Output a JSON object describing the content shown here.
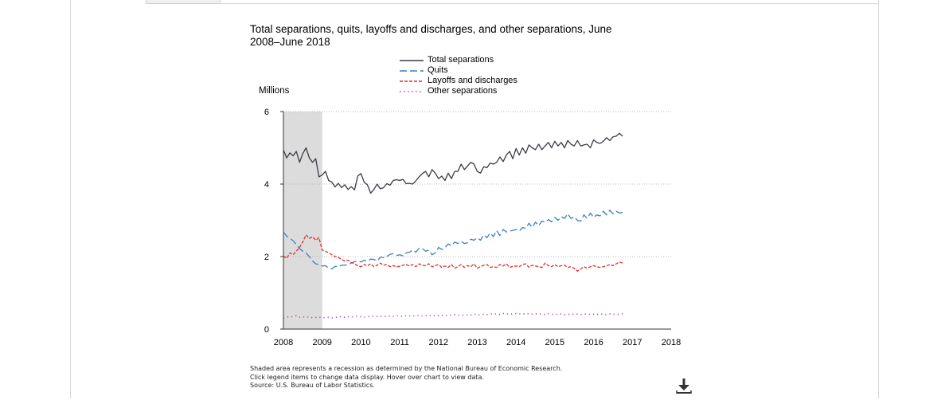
{
  "chart_data": {
    "type": "line",
    "title": "Total separations, quits, layoffs and discharges, and other separations, June 2008–June 2018",
    "ylabel": "Millions",
    "xlabel": "",
    "ylim": [
      0,
      6
    ],
    "xlim": [
      2008,
      2018
    ],
    "yticks": [
      0,
      2,
      4,
      6
    ],
    "xticks": [
      2008,
      2009,
      2010,
      2011,
      2012,
      2013,
      2014,
      2015,
      2016,
      2017,
      2018
    ],
    "grid": "horizontal dotted",
    "legend_position": "top",
    "recession_shading": [
      2008,
      2009
    ],
    "series": [
      {
        "name": "Total separations",
        "color": "#3b3b45",
        "dash": "solid",
        "x_start": 2008.0,
        "x_step": 0.08333,
        "values": [
          4.94,
          4.72,
          4.86,
          4.78,
          4.9,
          4.6,
          4.84,
          5.0,
          4.72,
          4.6,
          4.7,
          4.2,
          4.25,
          4.35,
          4.1,
          4.05,
          3.92,
          4.02,
          3.9,
          3.98,
          3.85,
          3.93,
          3.84,
          4.22,
          4.29,
          4.05,
          3.98,
          3.75,
          3.85,
          4.0,
          3.87,
          3.9,
          4.01,
          3.97,
          4.1,
          4.12,
          4.1,
          4.13,
          4.01,
          4.02,
          4.0,
          4.09,
          4.2,
          4.29,
          4.35,
          4.2,
          4.4,
          4.3,
          4.15,
          4.22,
          4.1,
          4.3,
          4.15,
          4.35,
          4.35,
          4.55,
          4.4,
          4.5,
          4.6,
          4.55,
          4.35,
          4.3,
          4.48,
          4.45,
          4.58,
          4.55,
          4.6,
          4.75,
          4.62,
          4.8,
          4.9,
          4.7,
          4.98,
          4.8,
          5.0,
          4.85,
          5.08,
          5.0,
          4.95,
          5.1,
          4.95,
          5.05,
          5.15,
          5.0,
          5.18,
          5.05,
          5.15,
          5.0,
          5.2,
          5.1,
          5.05,
          5.2,
          5.05,
          5.08,
          5.1,
          5.0,
          5.22,
          5.15,
          5.12,
          5.18,
          5.28,
          5.2,
          5.3,
          5.32,
          5.4,
          5.32
        ]
      },
      {
        "name": "Quits",
        "color": "#3a7fc1",
        "dash": "long-dash",
        "x_start": 2008.0,
        "x_step": 0.08333,
        "values": [
          2.68,
          2.56,
          2.5,
          2.44,
          2.33,
          2.22,
          2.15,
          2.1,
          2.0,
          1.88,
          1.8,
          1.78,
          1.74,
          1.75,
          1.68,
          1.66,
          1.73,
          1.72,
          1.76,
          1.76,
          1.78,
          1.82,
          1.86,
          1.88,
          1.85,
          1.9,
          1.87,
          1.93,
          1.92,
          1.88,
          1.98,
          1.97,
          2.0,
          2.06,
          2.08,
          2.03,
          2.05,
          2.02,
          2.1,
          2.12,
          2.18,
          2.12,
          2.23,
          2.22,
          2.15,
          2.18,
          2.05,
          2.1,
          2.25,
          2.2,
          2.25,
          2.35,
          2.3,
          2.4,
          2.36,
          2.42,
          2.36,
          2.38,
          2.48,
          2.45,
          2.52,
          2.45,
          2.6,
          2.52,
          2.65,
          2.55,
          2.72,
          2.58,
          2.75,
          2.68,
          2.7,
          2.72,
          2.75,
          2.7,
          2.8,
          2.78,
          2.92,
          2.8,
          2.95,
          2.85,
          2.98,
          2.95,
          3.02,
          2.96,
          3.08,
          3.0,
          3.1,
          3.05,
          3.18,
          3.05,
          3.1,
          3.0,
          2.98,
          3.15,
          3.05,
          3.2,
          3.08,
          3.15,
          3.12,
          3.25,
          3.15,
          3.28,
          3.18,
          3.25,
          3.2,
          3.22
        ]
      },
      {
        "name": "Layoffs and discharges",
        "color": "#e62b2b",
        "dash": "short-dash",
        "x_start": 2008.0,
        "x_step": 0.08333,
        "values": [
          2.02,
          1.95,
          2.1,
          2.05,
          2.15,
          2.25,
          2.4,
          2.6,
          2.5,
          2.55,
          2.45,
          2.52,
          2.18,
          2.15,
          2.1,
          2.05,
          2.0,
          1.98,
          1.92,
          1.88,
          1.9,
          1.84,
          1.8,
          1.75,
          1.72,
          1.78,
          1.74,
          1.8,
          1.72,
          1.76,
          1.82,
          1.76,
          1.78,
          1.72,
          1.75,
          1.72,
          1.73,
          1.76,
          1.78,
          1.74,
          1.78,
          1.72,
          1.8,
          1.76,
          1.75,
          1.8,
          1.72,
          1.75,
          1.78,
          1.7,
          1.74,
          1.7,
          1.78,
          1.68,
          1.72,
          1.78,
          1.7,
          1.75,
          1.72,
          1.8,
          1.68,
          1.72,
          1.76,
          1.78,
          1.7,
          1.72,
          1.7,
          1.78,
          1.74,
          1.8,
          1.7,
          1.73,
          1.74,
          1.72,
          1.78,
          1.8,
          1.7,
          1.76,
          1.74,
          1.72,
          1.7,
          1.82,
          1.75,
          1.72,
          1.78,
          1.72,
          1.75,
          1.76,
          1.7,
          1.72,
          1.68,
          1.6,
          1.66,
          1.72,
          1.68,
          1.72,
          1.75,
          1.72,
          1.7,
          1.72,
          1.74,
          1.78,
          1.75,
          1.8,
          1.85,
          1.82
        ]
      },
      {
        "name": "Other separations",
        "color": "#b04ab0",
        "dash": "dotted",
        "x_start": 2008.0,
        "x_step": 0.08333,
        "values": [
          0.3,
          0.33,
          0.35,
          0.34,
          0.37,
          0.33,
          0.34,
          0.32,
          0.34,
          0.31,
          0.32,
          0.33,
          0.31,
          0.32,
          0.33,
          0.31,
          0.32,
          0.33,
          0.35,
          0.32,
          0.34,
          0.33,
          0.35,
          0.36,
          0.34,
          0.33,
          0.35,
          0.34,
          0.36,
          0.35,
          0.36,
          0.34,
          0.35,
          0.36,
          0.35,
          0.37,
          0.36,
          0.35,
          0.37,
          0.36,
          0.37,
          0.36,
          0.38,
          0.36,
          0.37,
          0.38,
          0.36,
          0.38,
          0.37,
          0.38,
          0.37,
          0.39,
          0.38,
          0.4,
          0.38,
          0.39,
          0.38,
          0.4,
          0.39,
          0.41,
          0.4,
          0.39,
          0.41,
          0.4,
          0.42,
          0.41,
          0.42,
          0.4,
          0.43,
          0.41,
          0.42,
          0.41,
          0.43,
          0.42,
          0.41,
          0.43,
          0.42,
          0.41,
          0.42,
          0.41,
          0.42,
          0.4,
          0.42,
          0.41,
          0.4,
          0.41,
          0.42,
          0.4,
          0.41,
          0.4,
          0.42,
          0.41,
          0.4,
          0.42,
          0.41,
          0.4,
          0.41,
          0.4,
          0.42,
          0.41,
          0.4,
          0.42,
          0.41,
          0.4,
          0.41,
          0.42
        ]
      }
    ]
  },
  "notes": {
    "line1": "Shaded area represents a recession as determined by the National Bureau of Economic Research.",
    "line2": "Click legend items to change data display. Hover over chart to view data.",
    "line3": "Source: U.S. Bureau of Labor Statistics."
  },
  "download_icon": "download-icon"
}
